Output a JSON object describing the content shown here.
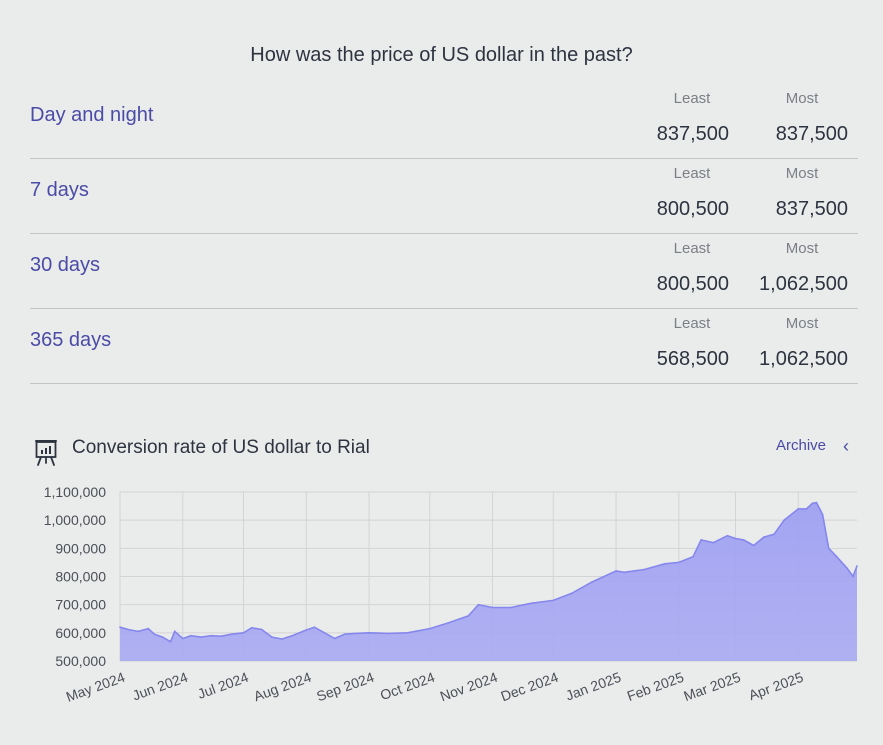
{
  "header": {
    "title": "How was the price of US dollar in the past?"
  },
  "ranges": [
    {
      "label": "Day and night",
      "least_label": "Least",
      "most_label": "Most",
      "least": "837,500",
      "most": "837,500"
    },
    {
      "label": "7 days",
      "least_label": "Least",
      "most_label": "Most",
      "least": "800,500",
      "most": "837,500"
    },
    {
      "label": "30 days",
      "least_label": "Least",
      "most_label": "Most",
      "least": "800,500",
      "most": "1,062,500"
    },
    {
      "label": "365 days",
      "least_label": "Least",
      "most_label": "Most",
      "least": "568,500",
      "most": "1,062,500"
    }
  ],
  "chart_section": {
    "title": "Conversion rate of US dollar to Rial",
    "archive_label": "Archive",
    "icon": "presentation-chart-icon",
    "chevron_icon": "chevron-left-icon"
  },
  "colors": {
    "accent": "#4a4ba6",
    "area_fill": "#a9aaf3",
    "area_line": "#8587ec"
  },
  "chart_data": {
    "type": "area",
    "title": "Conversion rate of US dollar to Rial",
    "xlabel": "",
    "ylabel": "",
    "ylim": [
      500000,
      1100000
    ],
    "yticks": [
      "500,000",
      "600,000",
      "700,000",
      "800,000",
      "900,000",
      "1,000,000",
      "1,100,000"
    ],
    "x_tick_labels": [
      "May 2024",
      "Jun 2024",
      "Jul 2024",
      "Aug 2024",
      "Sep 2024",
      "Oct 2024",
      "Nov 2024",
      "Dec 2024",
      "Jan 2025",
      "Feb 2025",
      "Mar 2025",
      "Apr 2025"
    ],
    "x_range": [
      "2024-05-01",
      "2025-04-30"
    ],
    "grid": true,
    "series": [
      {
        "x": [
          "2024-05-01",
          "2024-05-05",
          "2024-05-10",
          "2024-05-15",
          "2024-05-18",
          "2024-05-22",
          "2024-05-26",
          "2024-05-28",
          "2024-06-01",
          "2024-06-05",
          "2024-06-10",
          "2024-06-15",
          "2024-06-20",
          "2024-06-25",
          "2024-07-01",
          "2024-07-05",
          "2024-07-10",
          "2024-07-15",
          "2024-07-20",
          "2024-07-25",
          "2024-08-01",
          "2024-08-05",
          "2024-08-10",
          "2024-08-15",
          "2024-08-20",
          "2024-08-25",
          "2024-09-01",
          "2024-09-10",
          "2024-09-20",
          "2024-10-01",
          "2024-10-10",
          "2024-10-20",
          "2024-10-25",
          "2024-11-01",
          "2024-11-10",
          "2024-11-20",
          "2024-12-01",
          "2024-12-10",
          "2024-12-20",
          "2025-01-01",
          "2025-01-05",
          "2025-01-15",
          "2025-01-25",
          "2025-02-01",
          "2025-02-08",
          "2025-02-12",
          "2025-02-18",
          "2025-02-25",
          "2025-03-01",
          "2025-03-05",
          "2025-03-10",
          "2025-03-15",
          "2025-03-20",
          "2025-03-25",
          "2025-04-01",
          "2025-04-05",
          "2025-04-08",
          "2025-04-10",
          "2025-04-13",
          "2025-04-16",
          "2025-04-20",
          "2025-04-25",
          "2025-04-28",
          "2025-04-30"
        ],
        "values": [
          620000,
          612000,
          605000,
          615000,
          595000,
          585000,
          568500,
          605000,
          580000,
          590000,
          585000,
          590000,
          588000,
          595000,
          600000,
          618000,
          612000,
          585000,
          578000,
          590000,
          610000,
          620000,
          600000,
          580000,
          595000,
          598000,
          600000,
          598000,
          600000,
          615000,
          635000,
          660000,
          700000,
          690000,
          690000,
          705000,
          715000,
          740000,
          780000,
          820000,
          815000,
          825000,
          845000,
          850000,
          870000,
          930000,
          920000,
          945000,
          935000,
          930000,
          910000,
          940000,
          950000,
          1000000,
          1040000,
          1040000,
          1060000,
          1062500,
          1020000,
          900000,
          870000,
          830000,
          800500,
          837500
        ]
      }
    ]
  }
}
